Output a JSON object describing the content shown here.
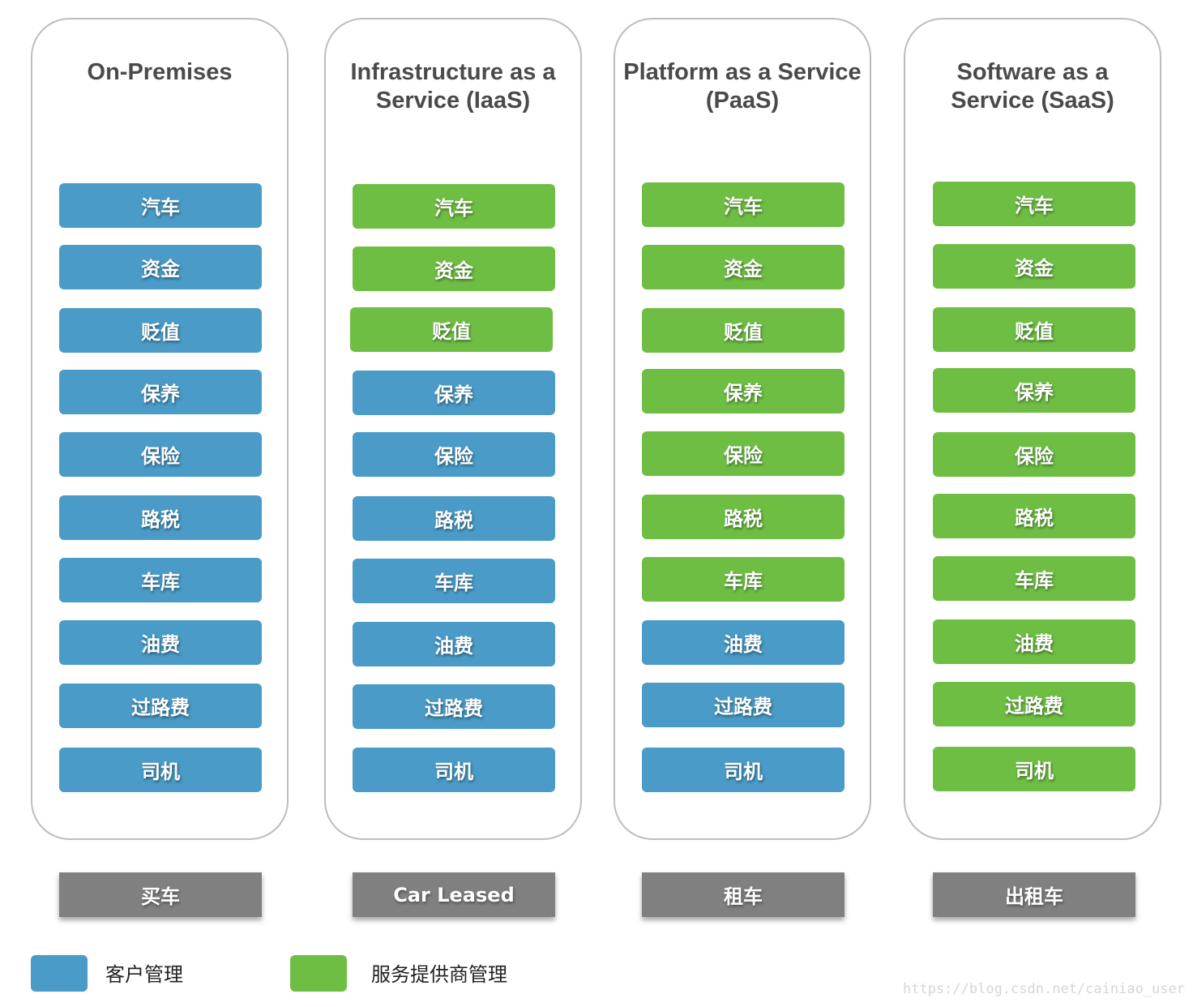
{
  "colors": {
    "customer": "#4a9bc7",
    "provider": "#6fbe44"
  },
  "columns": [
    {
      "title": "On-Premises",
      "footer": "买车",
      "items": [
        {
          "label": "汽车",
          "owner": "customer"
        },
        {
          "label": "资金",
          "owner": "customer"
        },
        {
          "label": "贬值",
          "owner": "customer"
        },
        {
          "label": "保养",
          "owner": "customer"
        },
        {
          "label": "保险",
          "owner": "customer"
        },
        {
          "label": "路税",
          "owner": "customer"
        },
        {
          "label": "车库",
          "owner": "customer"
        },
        {
          "label": "油费",
          "owner": "customer"
        },
        {
          "label": "过路费",
          "owner": "customer"
        },
        {
          "label": "司机",
          "owner": "customer"
        }
      ]
    },
    {
      "title": "Infrastructure as a Service (IaaS)",
      "footer": "Car Leased",
      "items": [
        {
          "label": "汽车",
          "owner": "provider"
        },
        {
          "label": "资金",
          "owner": "provider"
        },
        {
          "label": "贬值",
          "owner": "provider"
        },
        {
          "label": "保养",
          "owner": "customer"
        },
        {
          "label": "保险",
          "owner": "customer"
        },
        {
          "label": "路税",
          "owner": "customer"
        },
        {
          "label": "车库",
          "owner": "customer"
        },
        {
          "label": "油费",
          "owner": "customer"
        },
        {
          "label": "过路费",
          "owner": "customer"
        },
        {
          "label": "司机",
          "owner": "customer"
        }
      ]
    },
    {
      "title": "Platform as a Service (PaaS)",
      "footer": "租车",
      "items": [
        {
          "label": "汽车",
          "owner": "provider"
        },
        {
          "label": "资金",
          "owner": "provider"
        },
        {
          "label": "贬值",
          "owner": "provider"
        },
        {
          "label": "保养",
          "owner": "provider"
        },
        {
          "label": "保险",
          "owner": "provider"
        },
        {
          "label": "路税",
          "owner": "provider"
        },
        {
          "label": "车库",
          "owner": "provider"
        },
        {
          "label": "油费",
          "owner": "customer"
        },
        {
          "label": "过路费",
          "owner": "customer"
        },
        {
          "label": "司机",
          "owner": "customer"
        }
      ]
    },
    {
      "title": "Software as a Service (SaaS)",
      "footer": "出租车",
      "items": [
        {
          "label": "汽车",
          "owner": "provider"
        },
        {
          "label": "资金",
          "owner": "provider"
        },
        {
          "label": "贬值",
          "owner": "provider"
        },
        {
          "label": "保养",
          "owner": "provider"
        },
        {
          "label": "保险",
          "owner": "provider"
        },
        {
          "label": "路税",
          "owner": "provider"
        },
        {
          "label": "车库",
          "owner": "provider"
        },
        {
          "label": "油费",
          "owner": "provider"
        },
        {
          "label": "过路费",
          "owner": "provider"
        },
        {
          "label": "司机",
          "owner": "provider"
        }
      ]
    }
  ],
  "legend": {
    "customer_label": "客户管理",
    "provider_label": "服务提供商管理"
  },
  "watermark": "https://blog.csdn.net/cainiao_user"
}
